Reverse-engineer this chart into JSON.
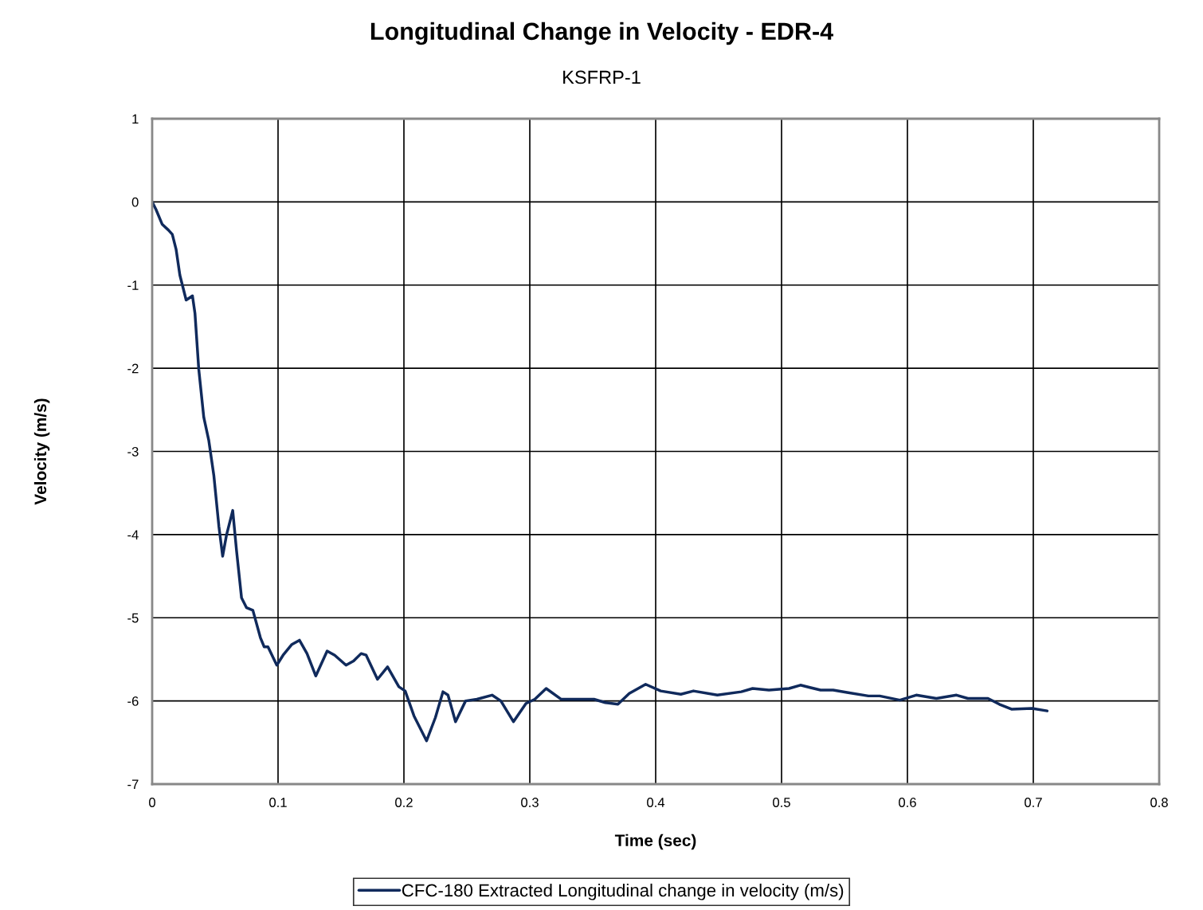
{
  "chart_data": {
    "type": "line",
    "title": "Longitudinal Change in Velocity - EDR-4",
    "subtitle": "KSFRP-1",
    "xlabel": "Time (sec)",
    "ylabel": "Velocity (m/s)",
    "xlim": [
      0,
      0.8
    ],
    "xticks": [
      0,
      0.1,
      0.2,
      0.3,
      0.4,
      0.5,
      0.6,
      0.7,
      0.8
    ],
    "ylim": [
      -7,
      1
    ],
    "yticks": [
      -7,
      -6,
      -5,
      -4,
      -3,
      -2,
      -1,
      0,
      1
    ],
    "grid": true,
    "legend": "bottom",
    "line_style": "solid",
    "marker": "none",
    "series": [
      {
        "name": "CFC-180 Extracted Longitudinal change in velocity (m/s)",
        "color": "#102a5c",
        "x": [
          0,
          0.003,
          0.008,
          0.013,
          0.016,
          0.019,
          0.022,
          0.024,
          0.027,
          0.029,
          0.032,
          0.034,
          0.037,
          0.041,
          0.045,
          0.049,
          0.053,
          0.056,
          0.059,
          0.064,
          0.067,
          0.071,
          0.075,
          0.08,
          0.086,
          0.089,
          0.092,
          0.099,
          0.104,
          0.111,
          0.117,
          0.123,
          0.13,
          0.139,
          0.145,
          0.154,
          0.16,
          0.166,
          0.17,
          0.179,
          0.187,
          0.196,
          0.201,
          0.208,
          0.218,
          0.225,
          0.231,
          0.235,
          0.241,
          0.249,
          0.258,
          0.27,
          0.277,
          0.287,
          0.297,
          0.304,
          0.313,
          0.325,
          0.338,
          0.351,
          0.36,
          0.37,
          0.379,
          0.392,
          0.404,
          0.42,
          0.43,
          0.449,
          0.468,
          0.477,
          0.49,
          0.506,
          0.515,
          0.531,
          0.541,
          0.553,
          0.569,
          0.578,
          0.594,
          0.607,
          0.623,
          0.639,
          0.648,
          0.664,
          0.673,
          0.683,
          0.699,
          0.711
        ],
        "values": [
          0,
          -0.09,
          -0.27,
          -0.34,
          -0.39,
          -0.57,
          -0.88,
          -1.0,
          -1.18,
          -1.16,
          -1.13,
          -1.34,
          -2.01,
          -2.59,
          -2.87,
          -3.29,
          -3.9,
          -4.26,
          -4.01,
          -3.71,
          -4.19,
          -4.76,
          -4.88,
          -4.91,
          -5.24,
          -5.35,
          -5.35,
          -5.57,
          -5.45,
          -5.32,
          -5.27,
          -5.43,
          -5.7,
          -5.4,
          -5.45,
          -5.57,
          -5.52,
          -5.43,
          -5.45,
          -5.74,
          -5.59,
          -5.83,
          -5.88,
          -6.18,
          -6.48,
          -6.2,
          -5.89,
          -5.93,
          -6.25,
          -6.0,
          -5.98,
          -5.93,
          -6.0,
          -6.25,
          -6.03,
          -5.98,
          -5.85,
          -5.98,
          -5.98,
          -5.98,
          -6.02,
          -6.04,
          -5.91,
          -5.8,
          -5.88,
          -5.92,
          -5.88,
          -5.93,
          -5.89,
          -5.85,
          -5.87,
          -5.85,
          -5.81,
          -5.87,
          -5.87,
          -5.9,
          -5.94,
          -5.94,
          -5.99,
          -5.93,
          -5.97,
          -5.93,
          -5.97,
          -5.97,
          -6.04,
          -6.1,
          -6.09,
          -6.12
        ]
      }
    ]
  }
}
